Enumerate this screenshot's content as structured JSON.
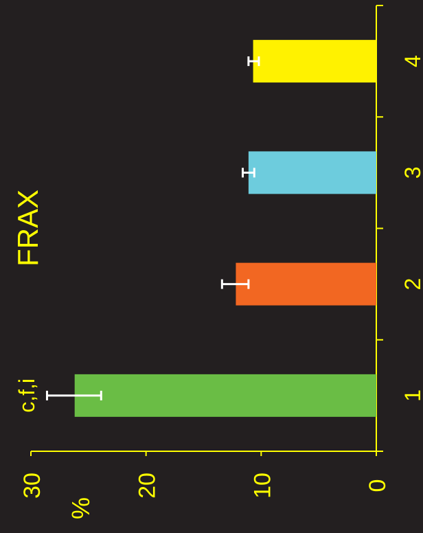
{
  "chart_data": {
    "type": "bar",
    "orientation": "rotated-90-counterclockwise",
    "title": "FRAX",
    "ylabel": "%",
    "xlabel": "",
    "categories": [
      "1",
      "2",
      "3",
      "4"
    ],
    "values": [
      26.2,
      12.2,
      11.1,
      10.7
    ],
    "error_low": [
      23.9,
      11.1,
      10.6,
      10.2
    ],
    "error_high": [
      28.6,
      13.4,
      11.6,
      11.1
    ],
    "annotations": [
      {
        "category": "1",
        "text": "c,f,i"
      }
    ],
    "yticks": [
      "0",
      "10",
      "20",
      "30"
    ],
    "ylim": [
      0,
      30
    ],
    "grid": false,
    "colors": {
      "background": "#231f20",
      "axis": "#ffff00",
      "text": "#ffff00",
      "error_bar": "#ffffff",
      "bars": [
        "#6abd45",
        "#f26722",
        "#6dccdd",
        "#fff200"
      ]
    }
  }
}
